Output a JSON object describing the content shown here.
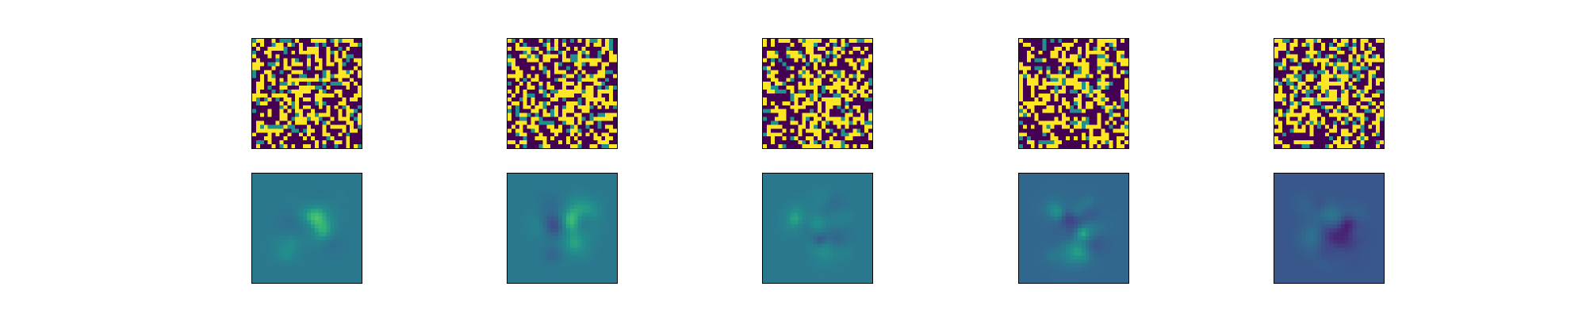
{
  "figure": {
    "rows": 2,
    "columns": 5,
    "row_kinds": [
      "noisy-input",
      "reconstruction"
    ],
    "colormap": "viridis",
    "grid_size": [
      28,
      28
    ],
    "noisy_row": {
      "pixel_levels": [
        "#440154",
        "#21908c",
        "#fde725"
      ],
      "level_weights": [
        0.55,
        0.12,
        0.33
      ]
    },
    "reconstruction_row": {
      "background_colors": [
        "#2a788e",
        "#2a788e",
        "#2a788e",
        "#31688e",
        "#3b528b"
      ]
    }
  }
}
